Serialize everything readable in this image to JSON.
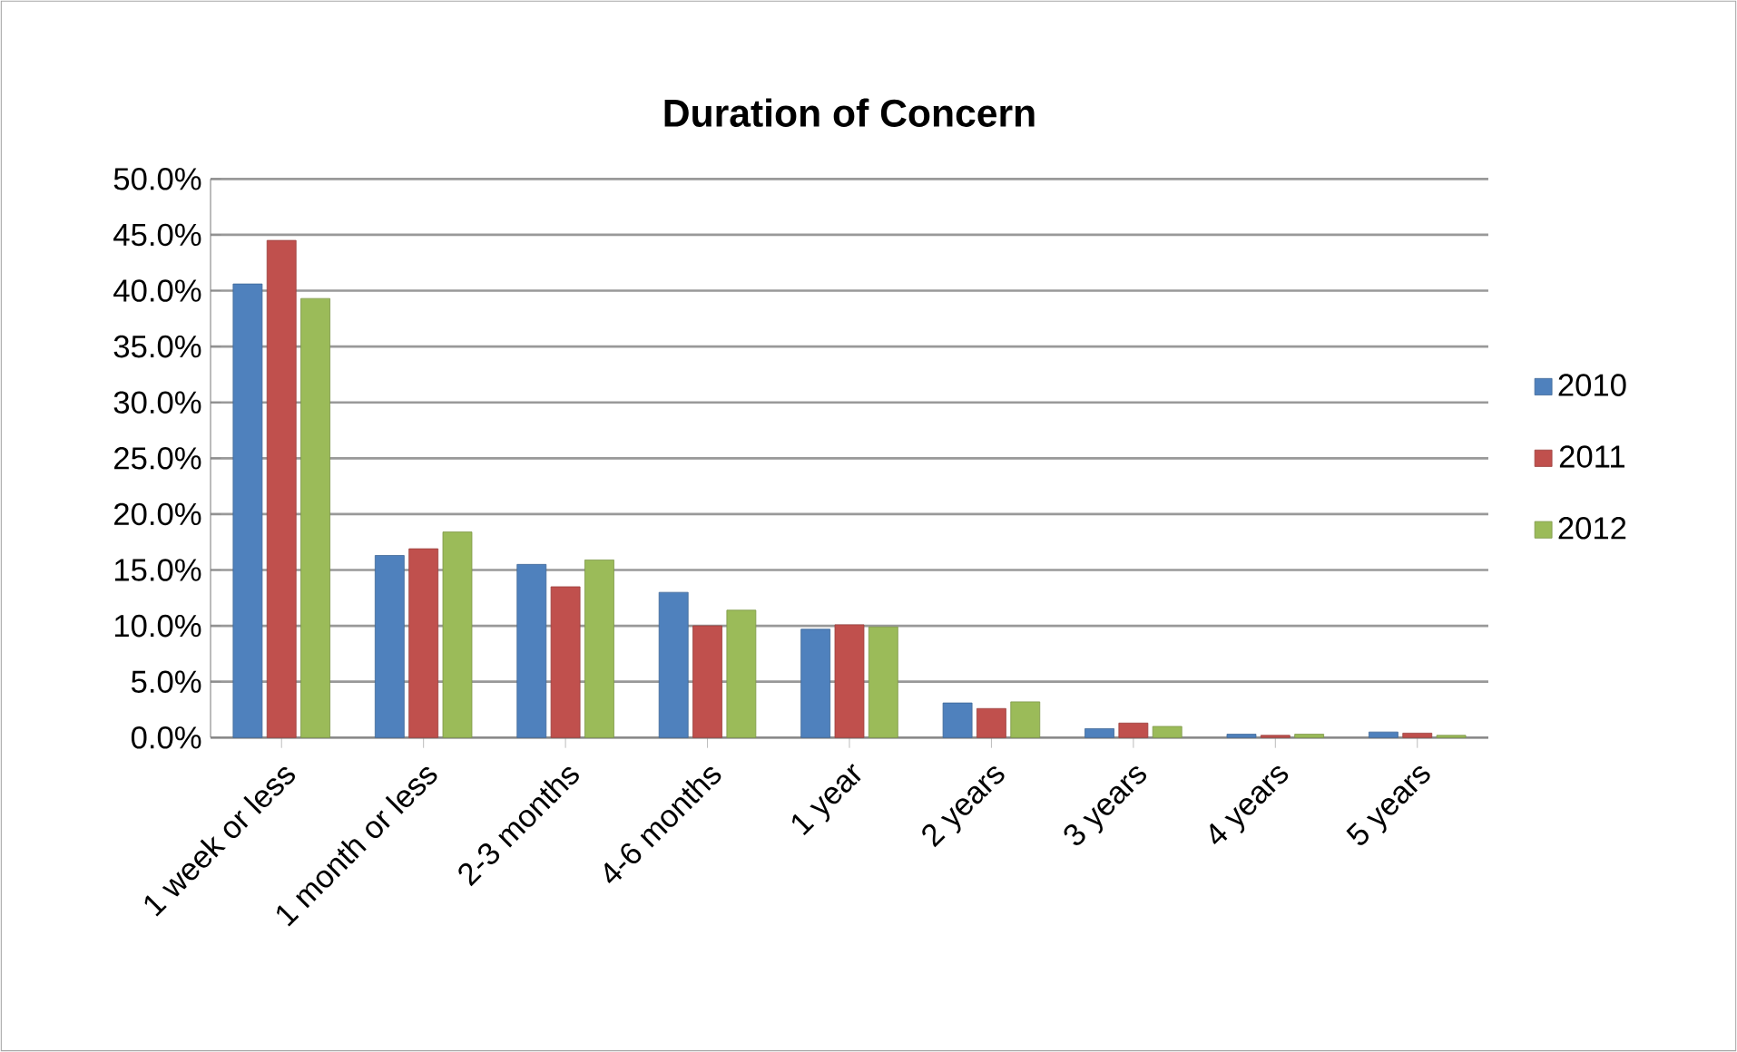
{
  "chart_data": {
    "type": "bar",
    "title": "Duration of Concern",
    "categories": [
      "1 week or less",
      "1 month or less",
      "2-3 months",
      "4-6 months",
      "1 year",
      "2 years",
      "3 years",
      "4 years",
      "5 years"
    ],
    "series": [
      {
        "name": "2010",
        "color": "#4f81bd",
        "values": [
          40.6,
          16.3,
          15.5,
          13.0,
          9.7,
          3.1,
          0.8,
          0.3,
          0.5
        ]
      },
      {
        "name": "2011",
        "color": "#c0504d",
        "values": [
          44.5,
          16.9,
          13.5,
          10.0,
          10.1,
          2.6,
          1.3,
          0.2,
          0.4
        ]
      },
      {
        "name": "2012",
        "color": "#9bbb59",
        "values": [
          39.3,
          18.4,
          15.9,
          11.4,
          9.9,
          3.2,
          1.0,
          0.3,
          0.2
        ]
      }
    ],
    "ylim": [
      0,
      50
    ],
    "yticks": [
      {
        "value": 0,
        "label": "0.0%"
      },
      {
        "value": 5,
        "label": "5.0%"
      },
      {
        "value": 10,
        "label": "10.0%"
      },
      {
        "value": 15,
        "label": "15.0%"
      },
      {
        "value": 20,
        "label": "20.0%"
      },
      {
        "value": 25,
        "label": "25.0%"
      },
      {
        "value": 30,
        "label": "30.0%"
      },
      {
        "value": 35,
        "label": "35.0%"
      },
      {
        "value": 40,
        "label": "40.0%"
      },
      {
        "value": 45,
        "label": "45.0%"
      },
      {
        "value": 50,
        "label": "50.0%"
      }
    ],
    "grid": "y",
    "legend": "right"
  }
}
